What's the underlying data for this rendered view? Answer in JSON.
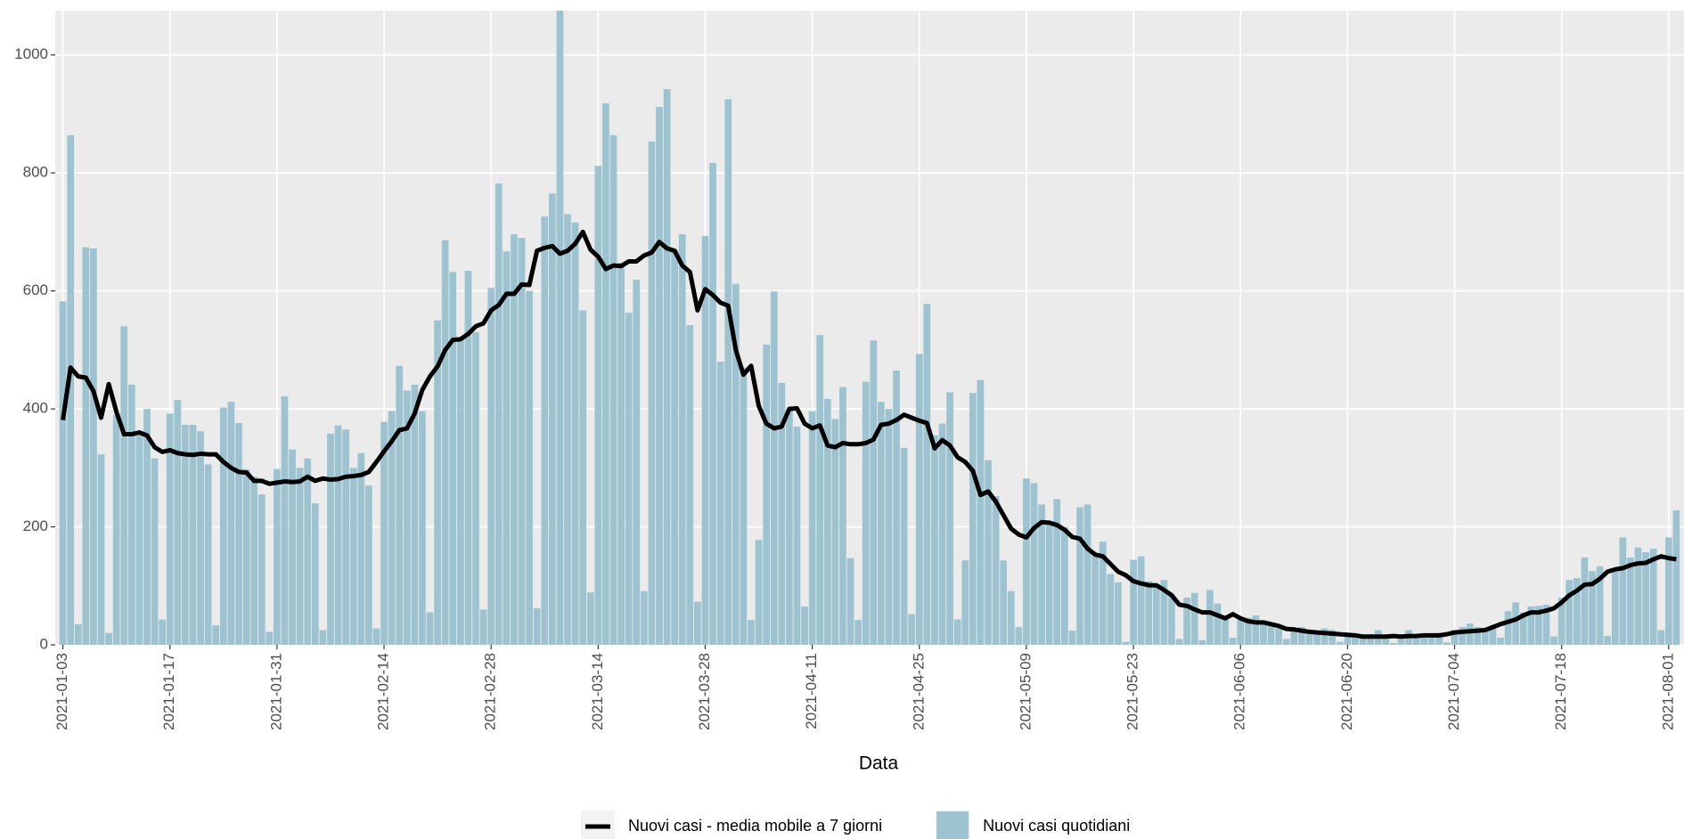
{
  "chart_data": {
    "type": "bar",
    "x_label": "Data",
    "x": [
      "2021-01-03",
      "2021-01-04",
      "2021-01-05",
      "2021-01-06",
      "2021-01-07",
      "2021-01-08",
      "2021-01-09",
      "2021-01-10",
      "2021-01-11",
      "2021-01-12",
      "2021-01-13",
      "2021-01-14",
      "2021-01-15",
      "2021-01-16",
      "2021-01-17",
      "2021-01-18",
      "2021-01-19",
      "2021-01-20",
      "2021-01-21",
      "2021-01-22",
      "2021-01-23",
      "2021-01-24",
      "2021-01-25",
      "2021-01-26",
      "2021-01-27",
      "2021-01-28",
      "2021-01-29",
      "2021-01-30",
      "2021-01-31",
      "2021-02-01",
      "2021-02-02",
      "2021-02-03",
      "2021-02-04",
      "2021-02-05",
      "2021-02-06",
      "2021-02-07",
      "2021-02-08",
      "2021-02-09",
      "2021-02-10",
      "2021-02-11",
      "2021-02-12",
      "2021-02-13",
      "2021-02-14",
      "2021-02-15",
      "2021-02-16",
      "2021-02-17",
      "2021-02-18",
      "2021-02-19",
      "2021-02-20",
      "2021-02-21",
      "2021-02-22",
      "2021-02-23",
      "2021-02-24",
      "2021-02-25",
      "2021-02-26",
      "2021-02-27",
      "2021-02-28",
      "2021-03-01",
      "2021-03-02",
      "2021-03-03",
      "2021-03-04",
      "2021-03-05",
      "2021-03-06",
      "2021-03-07",
      "2021-03-08",
      "2021-03-09",
      "2021-03-10",
      "2021-03-11",
      "2021-03-12",
      "2021-03-13",
      "2021-03-14",
      "2021-03-15",
      "2021-03-16",
      "2021-03-17",
      "2021-03-18",
      "2021-03-19",
      "2021-03-20",
      "2021-03-21",
      "2021-03-22",
      "2021-03-23",
      "2021-03-24",
      "2021-03-25",
      "2021-03-26",
      "2021-03-27",
      "2021-03-28",
      "2021-03-29",
      "2021-03-30",
      "2021-03-31",
      "2021-04-01",
      "2021-04-02",
      "2021-04-03",
      "2021-04-04",
      "2021-04-05",
      "2021-04-06",
      "2021-04-07",
      "2021-04-08",
      "2021-04-09",
      "2021-04-10",
      "2021-04-11",
      "2021-04-12",
      "2021-04-13",
      "2021-04-14",
      "2021-04-15",
      "2021-04-16",
      "2021-04-17",
      "2021-04-18",
      "2021-04-19",
      "2021-04-20",
      "2021-04-21",
      "2021-04-22",
      "2021-04-23",
      "2021-04-24",
      "2021-04-25",
      "2021-04-26",
      "2021-04-27",
      "2021-04-28",
      "2021-04-29",
      "2021-04-30",
      "2021-05-01",
      "2021-05-02",
      "2021-05-03",
      "2021-05-04",
      "2021-05-05",
      "2021-05-06",
      "2021-05-07",
      "2021-05-08",
      "2021-05-09",
      "2021-05-10",
      "2021-05-11",
      "2021-05-12",
      "2021-05-13",
      "2021-05-14",
      "2021-05-15",
      "2021-05-16",
      "2021-05-17",
      "2021-05-18",
      "2021-05-19",
      "2021-05-20",
      "2021-05-21",
      "2021-05-22",
      "2021-05-23",
      "2021-05-24",
      "2021-05-25",
      "2021-05-26",
      "2021-05-27",
      "2021-05-28",
      "2021-05-29",
      "2021-05-30",
      "2021-05-31",
      "2021-06-01",
      "2021-06-02",
      "2021-06-03",
      "2021-06-04",
      "2021-06-05",
      "2021-06-06",
      "2021-06-07",
      "2021-06-08",
      "2021-06-09",
      "2021-06-10",
      "2021-06-11",
      "2021-06-12",
      "2021-06-13",
      "2021-06-14",
      "2021-06-15",
      "2021-06-16",
      "2021-06-17",
      "2021-06-18",
      "2021-06-19",
      "2021-06-20",
      "2021-06-21",
      "2021-06-22",
      "2021-06-23",
      "2021-06-24",
      "2021-06-25",
      "2021-06-26",
      "2021-06-27",
      "2021-06-28",
      "2021-06-29",
      "2021-06-30",
      "2021-07-01",
      "2021-07-02",
      "2021-07-03",
      "2021-07-04",
      "2021-07-05",
      "2021-07-06",
      "2021-07-07",
      "2021-07-08",
      "2021-07-09",
      "2021-07-10",
      "2021-07-11",
      "2021-07-12",
      "2021-07-13",
      "2021-07-14",
      "2021-07-15",
      "2021-07-16",
      "2021-07-17",
      "2021-07-18",
      "2021-07-19",
      "2021-07-20",
      "2021-07-21",
      "2021-07-22",
      "2021-07-23",
      "2021-07-24",
      "2021-07-25",
      "2021-07-26",
      "2021-07-27",
      "2021-07-28",
      "2021-07-29",
      "2021-07-30",
      "2021-07-31",
      "2021-08-01",
      "2021-08-02"
    ],
    "series": [
      {
        "name": "Nuovi casi - media mobile a 7 giorni",
        "type": "line",
        "color": "#000000",
        "values": [
          381,
          470,
          455,
          453,
          430,
          385,
          442,
          395,
          357,
          357,
          360,
          355,
          335,
          327,
          330,
          325,
          323,
          322,
          324,
          323,
          323,
          310,
          300,
          293,
          292,
          278,
          278,
          273,
          275,
          277,
          276,
          277,
          285,
          278,
          282,
          280,
          281,
          285,
          286,
          288,
          293,
          310,
          328,
          345,
          364,
          367,
          392,
          432,
          455,
          472,
          500,
          517,
          518,
          527,
          540,
          545,
          567,
          576,
          595,
          595,
          611,
          610,
          668,
          673,
          676,
          663,
          668,
          680,
          700,
          670,
          658,
          637,
          643,
          642,
          650,
          650,
          660,
          665,
          683,
          672,
          668,
          643,
          632,
          567,
          603,
          593,
          580,
          575,
          500,
          458,
          473,
          405,
          375,
          367,
          370,
          400,
          401,
          375,
          367,
          372,
          338,
          335,
          342,
          340,
          340,
          342,
          348,
          373,
          375,
          381,
          390,
          385,
          380,
          376,
          333,
          347,
          338,
          318,
          310,
          295,
          254,
          260,
          243,
          220,
          197,
          187,
          182,
          198,
          208,
          207,
          203,
          195,
          183,
          180,
          163,
          153,
          150,
          137,
          124,
          118,
          108,
          104,
          101,
          101,
          93,
          84,
          68,
          66,
          60,
          55,
          55,
          50,
          45,
          52,
          45,
          40,
          38,
          38,
          35,
          32,
          27,
          26,
          24,
          22,
          21,
          20,
          19,
          18,
          17,
          16,
          14,
          14,
          14,
          14,
          15,
          14,
          15,
          15,
          16,
          16,
          16,
          18,
          21,
          22,
          23,
          24,
          25,
          30,
          35,
          39,
          43,
          50,
          55,
          55,
          58,
          62,
          72,
          84,
          92,
          102,
          103,
          112,
          124,
          128,
          130,
          135,
          138,
          139,
          145,
          150,
          147,
          145
        ]
      },
      {
        "name": "Nuovi casi quotidiani",
        "type": "bar",
        "color": "#9dc3d0",
        "values": [
          582,
          864,
          35,
          674,
          672,
          323,
          20,
          390,
          540,
          441,
          355,
          400,
          316,
          43,
          392,
          415,
          373,
          373,
          362,
          306,
          33,
          402,
          412,
          376,
          298,
          285,
          255,
          22,
          298,
          421,
          331,
          300,
          316,
          240,
          25,
          358,
          372,
          365,
          300,
          325,
          270,
          28,
          378,
          396,
          473,
          431,
          441,
          396,
          55,
          550,
          686,
          632,
          520,
          634,
          530,
          60,
          605,
          782,
          667,
          696,
          690,
          600,
          62,
          726,
          765,
          1150,
          730,
          716,
          567,
          89,
          812,
          918,
          864,
          648,
          563,
          619,
          91,
          853,
          912,
          942,
          670,
          696,
          542,
          73,
          693,
          817,
          480,
          925,
          612,
          470,
          42,
          178,
          509,
          599,
          444,
          400,
          370,
          65,
          396,
          525,
          417,
          383,
          437,
          147,
          42,
          446,
          516,
          412,
          400,
          465,
          334,
          52,
          493,
          578,
          355,
          375,
          428,
          43,
          143,
          427,
          449,
          313,
          252,
          143,
          91,
          30,
          282,
          274,
          238,
          210,
          247,
          200,
          24,
          233,
          238,
          155,
          175,
          120,
          106,
          5,
          144,
          150,
          108,
          100,
          110,
          85,
          10,
          80,
          88,
          8,
          93,
          70,
          50,
          12,
          45,
          46,
          50,
          40,
          38,
          28,
          10,
          26,
          30,
          22,
          18,
          28,
          25,
          5,
          17,
          15,
          12,
          18,
          25,
          15,
          3,
          15,
          25,
          14,
          12,
          16,
          20,
          4,
          25,
          30,
          36,
          30,
          28,
          32,
          12,
          57,
          72,
          55,
          65,
          66,
          68,
          14,
          80,
          110,
          113,
          148,
          125,
          133,
          15,
          128,
          182,
          148,
          165,
          157,
          163,
          25,
          182,
          228
        ]
      }
    ],
    "xlim": [
      "2021-01-02",
      "2021-08-03"
    ],
    "xticks": [
      "2021-01-03",
      "2021-01-17",
      "2021-01-31",
      "2021-02-14",
      "2021-02-28",
      "2021-03-14",
      "2021-03-28",
      "2021-04-11",
      "2021-04-25",
      "2021-05-09",
      "2021-05-23",
      "2021-06-06",
      "2021-06-20",
      "2021-07-04",
      "2021-07-18",
      "2021-08-01"
    ],
    "ylim": [
      0,
      1075
    ],
    "yticks": [
      0,
      200,
      400,
      600,
      800,
      1000
    ],
    "grid": true,
    "legend": "bottom"
  }
}
